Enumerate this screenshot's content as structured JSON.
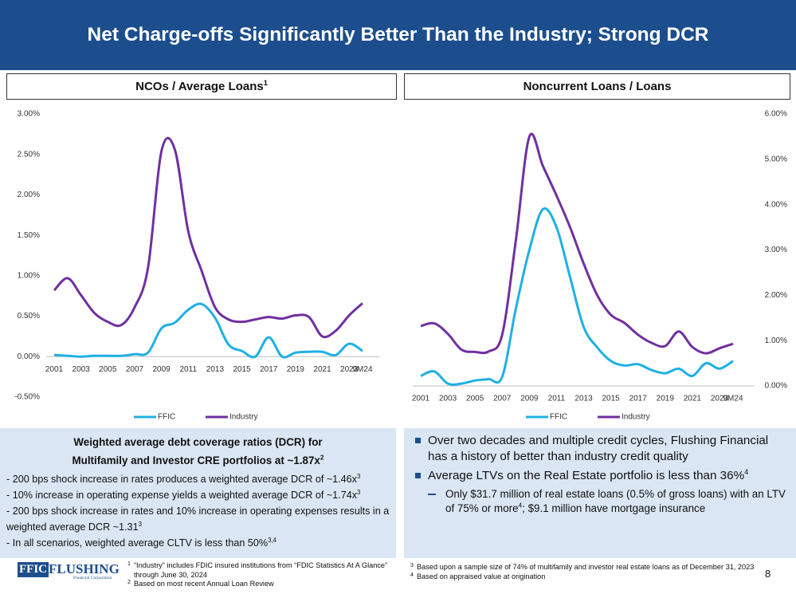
{
  "header": {
    "title": "Net Charge-offs Significantly Better Than the Industry; Strong DCR"
  },
  "chart_data": [
    {
      "type": "line",
      "title": "NCOs / Average Loans",
      "title_note": "1",
      "categories": [
        "2001",
        null,
        "2003",
        null,
        "2005",
        null,
        "2007",
        null,
        "2009",
        null,
        "2011",
        null,
        "2013",
        null,
        "2015",
        null,
        "2017",
        null,
        "2019",
        null,
        "2021",
        null,
        "2023",
        "9M24"
      ],
      "series": [
        {
          "name": "FFIC",
          "color": "#1fb0e3",
          "values": [
            0.02,
            0.01,
            0.0,
            0.01,
            0.01,
            0.01,
            0.03,
            0.05,
            0.35,
            0.42,
            0.58,
            0.65,
            0.48,
            0.15,
            0.07,
            0.0,
            0.24,
            0.0,
            0.05,
            0.06,
            0.06,
            0.02,
            0.16,
            0.07
          ]
        },
        {
          "name": "Industry",
          "color": "#7030a0",
          "values": [
            0.82,
            0.97,
            0.76,
            0.54,
            0.43,
            0.39,
            0.61,
            1.1,
            2.54,
            2.56,
            1.55,
            1.06,
            0.61,
            0.46,
            0.43,
            0.46,
            0.49,
            0.47,
            0.51,
            0.49,
            0.25,
            0.32,
            0.51,
            0.66
          ]
        }
      ],
      "ylim": [
        -0.5,
        3.0
      ],
      "yticks": [
        {
          "value": -0.5,
          "label": "-0.50%"
        },
        {
          "value": 0,
          "label": "0.00%"
        },
        {
          "value": 0.5,
          "label": "0.50%"
        },
        {
          "value": 1.0,
          "label": "1.00%"
        },
        {
          "value": 1.5,
          "label": "1.50%"
        },
        {
          "value": 2.0,
          "label": "2.00%"
        },
        {
          "value": 2.5,
          "label": "2.50%"
        },
        {
          "value": 3.0,
          "label": "3.00%"
        }
      ],
      "y_axis_side": "left",
      "legend": "bottom",
      "grid": false
    },
    {
      "type": "line",
      "title": "Noncurrent Loans / Loans",
      "categories": [
        "2001",
        null,
        "2003",
        null,
        "2005",
        null,
        "2007",
        null,
        "2009",
        null,
        "2011",
        null,
        "2013",
        null,
        "2015",
        null,
        "2017",
        null,
        "2019",
        null,
        "2021",
        null,
        "2023",
        "9M24"
      ],
      "series": [
        {
          "name": "FFIC",
          "color": "#1fb0e3",
          "values": [
            0.22,
            0.32,
            0.05,
            0.05,
            0.12,
            0.15,
            0.2,
            1.7,
            3.0,
            3.9,
            3.5,
            2.4,
            1.3,
            0.85,
            0.55,
            0.45,
            0.48,
            0.35,
            0.28,
            0.38,
            0.22,
            0.5,
            0.38,
            0.55
          ]
        },
        {
          "name": "Industry",
          "color": "#7030a0",
          "values": [
            1.32,
            1.38,
            1.15,
            0.8,
            0.75,
            0.76,
            1.13,
            3.2,
            5.5,
            4.85,
            4.2,
            3.5,
            2.7,
            2.0,
            1.57,
            1.39,
            1.13,
            0.95,
            0.88,
            1.2,
            0.86,
            0.72,
            0.83,
            0.93
          ]
        }
      ],
      "ylim": [
        0,
        6.0
      ],
      "yticks": [
        {
          "value": 0,
          "label": "0.00%"
        },
        {
          "value": 1.0,
          "label": "1.00%"
        },
        {
          "value": 2.0,
          "label": "2.00%"
        },
        {
          "value": 3.0,
          "label": "3.00%"
        },
        {
          "value": 4.0,
          "label": "4.00%"
        },
        {
          "value": 5.0,
          "label": "5.00%"
        },
        {
          "value": 6.0,
          "label": "6.00%"
        }
      ],
      "y_axis_side": "right",
      "legend": "bottom",
      "grid": false
    }
  ],
  "dcr_box": {
    "heading": [
      "Weighted average debt coverage ratios (DCR) for",
      "Multifamily and  Investor CRE portfolios at ~1.87x"
    ],
    "heading_note": "2",
    "bullets": [
      {
        "text": "- 200 bps shock increase in rates produces a weighted average DCR of ~1.46x",
        "note": "3"
      },
      {
        "text": "- 10% increase in operating expense yields a weighted average DCR of ~1.74x",
        "note": "3"
      },
      {
        "text": "- 200 bps shock increase in rates and 10% increase in operating expenses results in a weighted average DCR ~1.31",
        "note": "3"
      },
      {
        "text": "- In all scenarios, weighted average CLTV is less than 50%",
        "note": "3,4"
      }
    ]
  },
  "highlights": {
    "bullets": [
      {
        "text": "Over two decades and multiple credit cycles, Flushing Financial has a history of better than industry credit quality"
      },
      {
        "text": "Average LTVs on the Real Estate portfolio is less than 36%",
        "note": "4"
      }
    ],
    "sub_bullet": {
      "text": "Only $31.7 million of real estate loans (0.5% of gross loans) with an LTV of 75% or more",
      "note": "4",
      "text_after": "; $9.1 million have mortgage insurance"
    }
  },
  "footer": {
    "logo": {
      "mark": "FFIC",
      "name": "FLUSHING",
      "tagline": "Financial Corporation"
    },
    "footnotes_left": [
      {
        "number": "1",
        "text": "“Industry” includes FDIC insured institutions from “FDIC Statistics At A Glance” through June 30, 2024"
      },
      {
        "number": "2",
        "text": "Based on most recent Annual Loan Review"
      }
    ],
    "footnotes_right": [
      {
        "number": "3",
        "text": "Based upon a sample size of 74% of multifamily and investor real estate loans as of December 31, 2023"
      },
      {
        "number": "4",
        "text": "Based on appraised value at origination"
      }
    ],
    "page_number": "8"
  }
}
